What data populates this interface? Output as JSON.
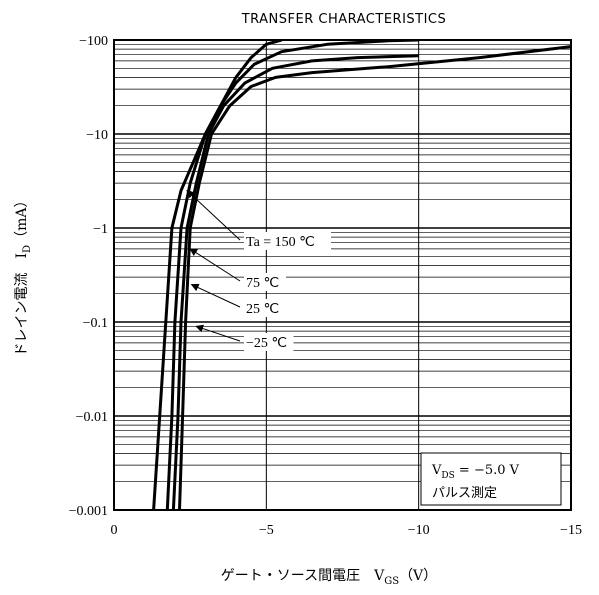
{
  "chart_data": {
    "type": "line",
    "title": "TRANSFER CHARACTERISTICS",
    "xlabel": "ゲート・ソース間電圧 V_GS (V)",
    "ylabel": "ドレイン電流 I_D (mA)",
    "x_scale": "linear",
    "y_scale": "log",
    "xlim": [
      0,
      -15
    ],
    "ylim": [
      -0.001,
      -100
    ],
    "x_ticks": [
      "0",
      "−5",
      "−10",
      "−15"
    ],
    "y_ticks": [
      "−100",
      "−10",
      "−1",
      "−0.1",
      "−0.01",
      "−0.001"
    ],
    "grid": true,
    "series": [
      {
        "name": "Ta = 150 °C",
        "x": [
          -1.3,
          -1.5,
          -1.7,
          -1.9,
          -2.2,
          -2.6,
          -3.0,
          -3.5,
          -4.0,
          -4.5,
          -5.0,
          -5.5
        ],
        "y": [
          -0.001,
          -0.01,
          -0.1,
          -1,
          -2.5,
          -5,
          -10,
          -20,
          -40,
          -65,
          -90,
          -100
        ]
      },
      {
        "name": "75 °C",
        "x": [
          -1.75,
          -1.9,
          -2.0,
          -2.2,
          -2.5,
          -3.0,
          -3.5,
          -4.0,
          -4.6,
          -5.5,
          -7.0,
          -9.0,
          -10.0
        ],
        "y": [
          -0.001,
          -0.01,
          -0.1,
          -1,
          -3,
          -10,
          -20,
          -35,
          -55,
          -75,
          -90,
          -98,
          -100
        ]
      },
      {
        "name": "25 °C",
        "x": [
          -1.95,
          -2.1,
          -2.2,
          -2.4,
          -2.7,
          -3.1,
          -3.6,
          -4.3,
          -5.2,
          -6.5,
          -8.0,
          -10.0
        ],
        "y": [
          -0.001,
          -0.01,
          -0.1,
          -1,
          -3,
          -10,
          -20,
          -35,
          -50,
          -60,
          -65,
          -68
        ]
      },
      {
        "name": "−25 °C",
        "x": [
          -2.15,
          -2.25,
          -2.35,
          -2.5,
          -2.8,
          -3.2,
          -3.8,
          -4.5,
          -5.3,
          -6.5,
          -9.0,
          -12.0,
          -15.0
        ],
        "y": [
          -0.001,
          -0.01,
          -0.1,
          -1,
          -3,
          -10,
          -20,
          -32,
          -40,
          -45,
          -52,
          -65,
          -85
        ]
      }
    ],
    "annotations": [
      {
        "text": "Ta = 150 ℃",
        "target_x": -2.2,
        "target_y": -2.5
      },
      {
        "text": "75 ℃",
        "target_x": -2.3,
        "target_y": -0.6
      },
      {
        "text": "25 ℃",
        "target_x": -2.35,
        "target_y": -0.25
      },
      {
        "text": "−25 ℃",
        "target_x": -2.5,
        "target_y": -0.09
      }
    ],
    "conditions": [
      "VDS = −5.0 V",
      "パルス測定"
    ]
  }
}
